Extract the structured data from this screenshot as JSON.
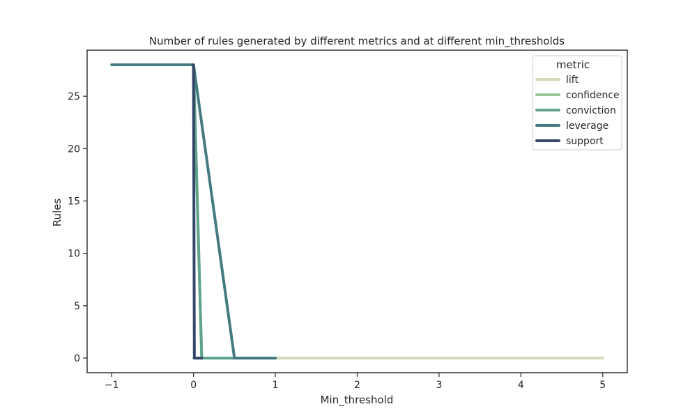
{
  "chart_data": {
    "type": "line",
    "title": "Number of rules generated by different metrics and at different min_thresholds",
    "xlabel": "Min_threshold",
    "ylabel": "Rules",
    "xlim": [
      -1.3,
      5.3
    ],
    "ylim": [
      -1.4,
      29.4
    ],
    "xticks": [
      -1,
      0,
      1,
      2,
      3,
      4,
      5
    ],
    "xtick_labels": [
      "−1",
      "0",
      "1",
      "2",
      "3",
      "4",
      "5"
    ],
    "yticks": [
      0,
      5,
      10,
      15,
      20,
      25
    ],
    "ytick_labels": [
      "0",
      "5",
      "10",
      "15",
      "20",
      "25"
    ],
    "grid": false,
    "legend": {
      "title": "metric",
      "placement": "top-right"
    },
    "series": [
      {
        "name": "lift",
        "color": "#d4dbb9",
        "x": [
          0.0,
          0.1,
          1.0,
          5.0
        ],
        "y": [
          0,
          0,
          0,
          0
        ]
      },
      {
        "name": "confidence",
        "color": "#96c796",
        "x": [
          0.0,
          0.1,
          0.4
        ],
        "y": [
          28,
          0,
          0
        ]
      },
      {
        "name": "conviction",
        "color": "#5fa38a",
        "x": [
          0.0,
          0.1,
          0.5,
          1.0
        ],
        "y": [
          28,
          0,
          0,
          0
        ]
      },
      {
        "name": "leverage",
        "color": "#437b80",
        "x": [
          -1.0,
          0.0,
          0.5,
          1.0
        ],
        "y": [
          28,
          28,
          0,
          0
        ]
      },
      {
        "name": "support",
        "color": "#35466a",
        "x": [
          0.0,
          0.01,
          0.1
        ],
        "y": [
          28,
          0,
          0
        ]
      }
    ]
  }
}
